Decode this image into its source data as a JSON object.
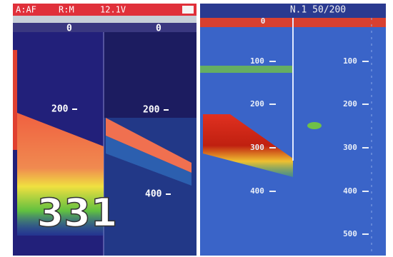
{
  "left_panel": {
    "status_bar": {
      "mode": "A:AF",
      "range": "R:M",
      "voltage": "12.1V"
    },
    "scale_labels": [
      "0",
      "0",
      "200",
      "200",
      "400"
    ],
    "depth_readout": "331"
  },
  "right_panel": {
    "header": "N.1 50/200",
    "inner_scale": [
      "0",
      "100",
      "200",
      "300",
      "400"
    ],
    "outer_scale": [
      "100",
      "200",
      "300",
      "400",
      "500"
    ]
  }
}
